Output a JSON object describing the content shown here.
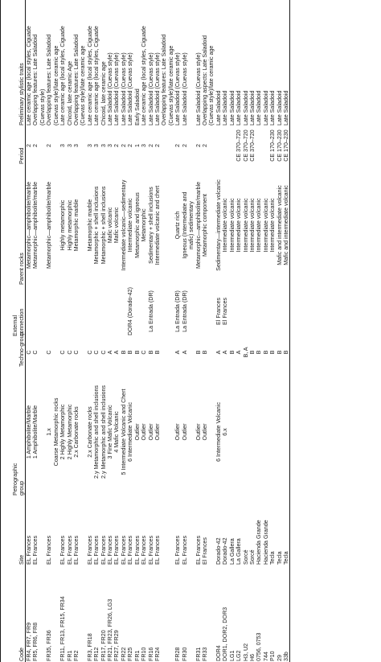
{
  "headers": {
    "code": "Code",
    "site": "Site",
    "petro_1": "Petrographic",
    "petro_2": "group",
    "techno": "Techno-group",
    "ext_1": "External",
    "ext_2": "connection",
    "parent": "Parent rocks",
    "period": "Period",
    "traits": "Preliminary stylistic traits"
  },
  "rows": [
    {
      "code": "FR4, FR7, FR9",
      "site": "EL Frances",
      "petro": "1 Amphibolite/Marble",
      "techno": "C",
      "ext": "",
      "parent": "Metamorphic—amphibolite/marble",
      "period": "2",
      "traits": "Late ceramic age (local styles, Ciguade"
    },
    {
      "code": "FR5, FR6, FR8",
      "site": "EL Frances",
      "petro": "1 Amphibolite/Marble",
      "techno": "C",
      "ext": "",
      "parent": "Metamorphic—amphibolite/marble",
      "period": "2",
      "traits": "Overlapping features: Late Saladoid"
    },
    {
      "code": "",
      "site": "",
      "petro": "",
      "techno": "",
      "ext": "",
      "parent": "",
      "period": "",
      "traits": "(Cuevas style)"
    },
    {
      "code": "FR35, FR36",
      "site": "EL Frances",
      "petro": "1.x",
      "techno": "C",
      "ext": "",
      "parent": "Metamorphic—amphibolite/marble",
      "period": "2",
      "traits": "Overlapping features: Late Saladoid"
    },
    {
      "code": "",
      "site": "",
      "petro": "Coarse Metamorphic rocks",
      "techno": "",
      "ext": "",
      "parent": "",
      "period": "",
      "traits": "(Cuevas style)/late ceramic age"
    },
    {
      "code": "FR11, FR13, FR15, FR34",
      "site": "EL Frances",
      "petro": "2 Highly Metamorphic",
      "techno": "C",
      "ext": "",
      "parent": "Highly metamorphic",
      "period": "3",
      "traits": "Late ceramic age (local styles, Ciguade"
    },
    {
      "code": "FR1",
      "site": "EL Frances",
      "petro": "2 Highly Metamorphic",
      "techno": "C",
      "ext": "",
      "parent": "Highly metamorphic",
      "period": "3",
      "traits": "Chicoid, late ceramic Age"
    },
    {
      "code": "FR2",
      "site": "EL Frances",
      "petro": "2.x Carbonate rocks",
      "techno": "C",
      "ext": "",
      "parent": "Metamorphic marble",
      "period": "3",
      "traits": "Overlapping features: Late Saladoid"
    },
    {
      "code": "",
      "site": "",
      "petro": "",
      "techno": "",
      "ext": "",
      "parent": "",
      "period": "",
      "traits": "(Cuevas style)/late ceramic age"
    },
    {
      "code": "FR3, FR18",
      "site": "EL Frances",
      "petro": "2.x Carbonate rocks",
      "techno": "C",
      "ext": "",
      "parent": "Metamorphic marble",
      "period": "3",
      "traits": "Late ceramic age (local styles, Ciguade"
    },
    {
      "code": "FR12",
      "site": "EL Frances",
      "petro": "2.y Metamorphic and shell inclusions",
      "techno": "C",
      "ext": "",
      "parent": "Metamorphic + shell inclusions",
      "period": "3",
      "traits": "Late ceramic age (local styles, Ciguade"
    },
    {
      "code": "FR17, FR20",
      "site": "EL Frances",
      "petro": "2.y Metamorphic and shell inclusions",
      "techno": "C",
      "ext": "",
      "parent": "Metamorphic + shell inclusions",
      "period": "3",
      "traits": "Chicoid, late ceramic age"
    },
    {
      "code": "FR21, FR23, FR26, LG3",
      "site": "EL Frances",
      "petro": "3 Fine Mafic Volcanic",
      "techno": "A",
      "ext": "",
      "parent": "Mafic volcanic",
      "period": "3",
      "traits": "Late Saladoid (Cuevas style)"
    },
    {
      "code": "FR27, FR29",
      "site": "EL Frances",
      "petro": "4 Mafic Volcanic",
      "techno": "A",
      "ext": "",
      "parent": "Mafic volcanic",
      "period": "2",
      "traits": "Late Saladoid (Cuevas style)"
    },
    {
      "code": "FR22",
      "site": "EL Frances",
      "petro": "5 Intermediate Volcanic and Chert",
      "techno": "B",
      "ext": "",
      "parent": "Intermediate volcanic—sedimentary",
      "period": "2",
      "traits": "Late Saladoid (Cuevas style)"
    },
    {
      "code": "FR25",
      "site": "EL Frances",
      "petro": "6 Intermediate Volcanic",
      "techno": "B",
      "ext": "DOR4 (Dorado-42)",
      "parent": "Intermediate volcanic",
      "period": "2",
      "traits": "Late Saladoid (Cuevas style)"
    },
    {
      "code": "FR1",
      "site": "EL Frances",
      "petro": "Outlier",
      "techno": "B",
      "ext": "",
      "parent": "Metamorphic and igneous",
      "period": "1",
      "traits": "Early Saladoid"
    },
    {
      "code": "FR10",
      "site": "EL Frances",
      "petro": "Outlier",
      "techno": "C",
      "ext": "",
      "parent": "Metamorphic",
      "period": "3",
      "traits": "Late ceramic age (local styles, Ciguade"
    },
    {
      "code": "FR16",
      "site": "EL Frances",
      "petro": "Outlier",
      "techno": "B",
      "ext": "La Entrada (DR)",
      "parent": "Sedimentary + shell inclusions",
      "period": "2",
      "traits": "Late Saladoid (Cuevas style)"
    },
    {
      "code": "FR24",
      "site": "EL Frances",
      "petro": "Outlier",
      "techno": "B",
      "ext": "",
      "parent": "Intermediate volcanic and chert",
      "period": "2",
      "traits": "Late Saladoid (Cuevas style)"
    },
    {
      "code": "",
      "site": "",
      "petro": "",
      "techno": "",
      "ext": "",
      "parent": "",
      "period": "",
      "traits": "Overlapping features: Late Saladoid"
    },
    {
      "code": "",
      "site": "",
      "petro": "",
      "techno": "",
      "ext": "",
      "parent": "",
      "period": "",
      "traits": "(Cuevas style)/late ceramic age"
    },
    {
      "code": "FR28",
      "site": "EL Frances",
      "petro": "Outlier",
      "techno": "A",
      "ext": "La Entrada (DR)",
      "parent": "Quartz rich",
      "period": "2",
      "traits": "Late Saladoid (Cuevas style)"
    },
    {
      "code": "FR30",
      "site": "EL Frances",
      "petro": "Outlier",
      "techno": "A",
      "ext": "La Entrada (DR)",
      "parent": "Igneous (Intermediate and",
      "period": "2",
      "traits": "Late Saladoid (Cuevas style)"
    },
    {
      "code": "",
      "site": "",
      "petro": "",
      "techno": "",
      "ext": "",
      "parent": "mafic) sedimentary",
      "period": "",
      "traits": ""
    },
    {
      "code": "FR31",
      "site": "EL Frances",
      "petro": "Outlier",
      "techno": "B",
      "ext": "",
      "parent": "Metamorphic—amphibolite/marble",
      "period": "2",
      "traits": "Late Saladoid (Cuevas style)"
    },
    {
      "code": "FR33",
      "site": "El Frances",
      "petro": "Outlier",
      "techno": "B",
      "ext": "",
      "parent": "Metamorphic component",
      "period": "2",
      "traits": "Overlapping aspects: Late Saladoid"
    },
    {
      "code": "",
      "site": "",
      "petro": "",
      "techno": "",
      "ext": "",
      "parent": "",
      "period": "",
      "traits": "(Cuevas style)/late ceramic age"
    },
    {
      "code": "DOR4",
      "site": "Dorado-42",
      "petro": "6 Intermediate Volcanic",
      "techno": "A",
      "ext": "El Frances",
      "parent": "Sedimentary—intermediate volcanic",
      "period": "",
      "traits": "Late Saladoid"
    },
    {
      "code": "DOR1, DOR2, DOR3",
      "site": "Dorado-42",
      "petro": "6.x",
      "techno": "A",
      "ext": "El Frances",
      "parent": "Intermediate volcanic",
      "period": "",
      "traits": "Late Saladoid"
    },
    {
      "code": "LG1",
      "site": "La Gallera",
      "petro": "",
      "techno": "B",
      "ext": "",
      "parent": "Intermediate volcanic",
      "period": "",
      "traits": "Late Saladoid"
    },
    {
      "code": "LG2",
      "site": "La Gallera",
      "petro": "",
      "techno": "A",
      "ext": "",
      "parent": "Intermediate volcanic",
      "period": "CE 370–720",
      "traits": "Late Saladoid"
    },
    {
      "code": "H3, U2",
      "site": "Sorcé",
      "petro": "",
      "techno": "B, A",
      "ext": "",
      "parent": "Intermediate volcanic",
      "period": "CE 370–720",
      "traits": "Late Saladoid"
    },
    {
      "code": "H6",
      "site": "Sorcé",
      "petro": "",
      "techno": "B",
      "ext": "",
      "parent": "Intermediate volcanic",
      "period": "CE 370–720",
      "traits": "Late Saladoid"
    },
    {
      "code": "0756, 0753",
      "site": "Hacienda Grande",
      "petro": "",
      "techno": "B",
      "ext": "",
      "parent": "Intermediate volcanic",
      "period": "",
      "traits": "Late Saladoid"
    },
    {
      "code": "744",
      "site": "Hacienda Grande",
      "petro": "",
      "techno": "B",
      "ext": "",
      "parent": "Intermediate volcanic",
      "period": "",
      "traits": "Late Saladoid"
    },
    {
      "code": "P10",
      "site": "Tecla",
      "petro": "",
      "techno": "B",
      "ext": "",
      "parent": "Intermediate volcanic",
      "period": "CE 170–230",
      "traits": "Late Saladoid"
    },
    {
      "code": "29",
      "site": "Tecla",
      "petro": "",
      "techno": "B",
      "ext": "",
      "parent": "Mafic and intermediate volcanic",
      "period": "CE 170–230",
      "traits": "Late Saladoid"
    },
    {
      "code": "33b",
      "site": "Tecla",
      "petro": "",
      "techno": "B",
      "ext": "",
      "parent": "Mafic and intermediate volcanic",
      "period": "CE 170–230",
      "traits": "Late Saladoid"
    }
  ]
}
